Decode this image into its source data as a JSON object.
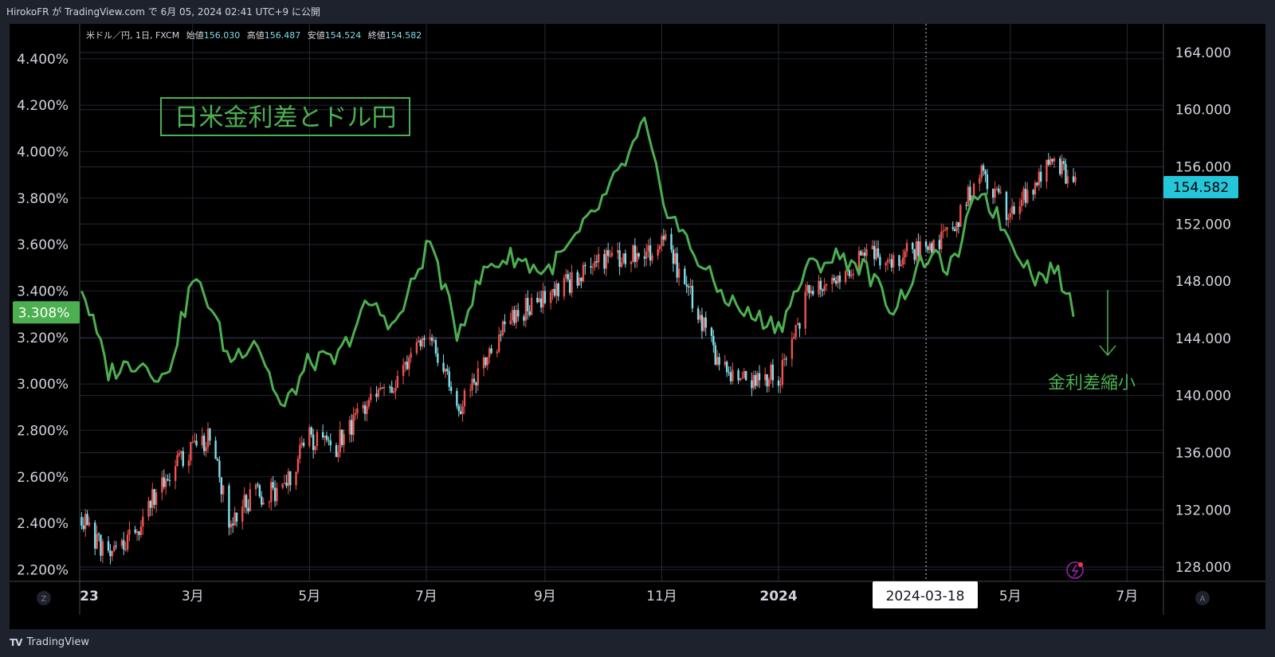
{
  "header": {
    "publish_text": "HirokoFR が TradingView.com で 6月 05, 2024 02:41 UTC+9 に公開"
  },
  "legend": {
    "symbol": "米ドル／円, 1日, FXCM",
    "open_label": "始値",
    "open_value": "156.030",
    "high_label": "高値",
    "high_value": "156.487",
    "low_label": "安値",
    "low_value": "154.524",
    "close_label": "終値",
    "close_value": "154.582"
  },
  "annotations": {
    "title_box": "日米金利差とドル円",
    "shrink_label": "金利差縮小"
  },
  "crosshair_date": "2024-03-18",
  "footer": {
    "brand": "TradingView",
    "left_btn": "Z",
    "right_btn": "A"
  },
  "colors": {
    "green": "#4caf50",
    "up": "#ef5350",
    "down": "#80deea",
    "price_badge": "#26c6da",
    "spread_badge": "#4caf50"
  },
  "chart_data": {
    "type": "line",
    "x": [
      "2023-01-02",
      "2023-01-16",
      "2023-02-01",
      "2023-02-15",
      "2023-03-01",
      "2023-03-10",
      "2023-03-20",
      "2023-04-03",
      "2023-04-17",
      "2023-05-01",
      "2023-05-15",
      "2023-06-01",
      "2023-06-15",
      "2023-07-03",
      "2023-07-17",
      "2023-08-01",
      "2023-08-15",
      "2023-09-01",
      "2023-09-15",
      "2023-10-02",
      "2023-10-16",
      "2023-10-23",
      "2023-11-01",
      "2023-11-15",
      "2023-12-01",
      "2023-12-15",
      "2024-01-02",
      "2024-01-16",
      "2024-02-01",
      "2024-02-15",
      "2024-03-01",
      "2024-03-18",
      "2024-04-01",
      "2024-04-15",
      "2024-04-29",
      "2024-05-15",
      "2024-05-24",
      "2024-06-04"
    ],
    "x_tick_labels": [
      "23",
      "3月",
      "5月",
      "7月",
      "9月",
      "11月",
      "2024",
      "5月",
      "7月"
    ],
    "series": [
      {
        "values": [
          3.42,
          3.05,
          3.1,
          3.02,
          3.45,
          3.35,
          3.1,
          3.2,
          2.88,
          3.1,
          3.1,
          3.35,
          3.25,
          3.62,
          3.22,
          3.5,
          3.55,
          3.48,
          3.6,
          3.8,
          4.0,
          4.12,
          3.8,
          3.6,
          3.4,
          3.3,
          3.25,
          3.5,
          3.55,
          3.5,
          3.32,
          3.55,
          3.5,
          3.85,
          3.65,
          3.45,
          3.5,
          3.31
        ],
        "axis": "left",
        "style": "line",
        "color": "#4caf50"
      },
      {
        "values": [
          131.5,
          128.5,
          131.0,
          134.5,
          136.5,
          137.0,
          131.5,
          133.0,
          133.5,
          137.0,
          136.5,
          139.5,
          141.0,
          144.5,
          139.0,
          142.5,
          145.5,
          147.0,
          148.0,
          149.5,
          150.0,
          149.5,
          151.0,
          147.5,
          142.0,
          141.0,
          141.5,
          147.0,
          148.0,
          150.0,
          149.5,
          150.5,
          151.5,
          156.0,
          153.0,
          155.0,
          156.5,
          154.582
        ],
        "axis": "right",
        "style": "candlestick"
      }
    ],
    "ylim_left": [
      2.15,
      4.55
    ],
    "yticks_left": [
      "2.200%",
      "2.400%",
      "2.600%",
      "2.800%",
      "3.000%",
      "3.200%",
      "3.400%",
      "3.600%",
      "3.800%",
      "4.000%",
      "4.200%",
      "4.400%"
    ],
    "left_last_value": "3.308%",
    "ylim_right": [
      127,
      166
    ],
    "yticks_right": [
      "128.000",
      "132.000",
      "136.000",
      "140.000",
      "144.000",
      "148.000",
      "152.000",
      "156.000",
      "160.000",
      "164.000"
    ],
    "right_last_value": "154.582",
    "grid": true
  }
}
